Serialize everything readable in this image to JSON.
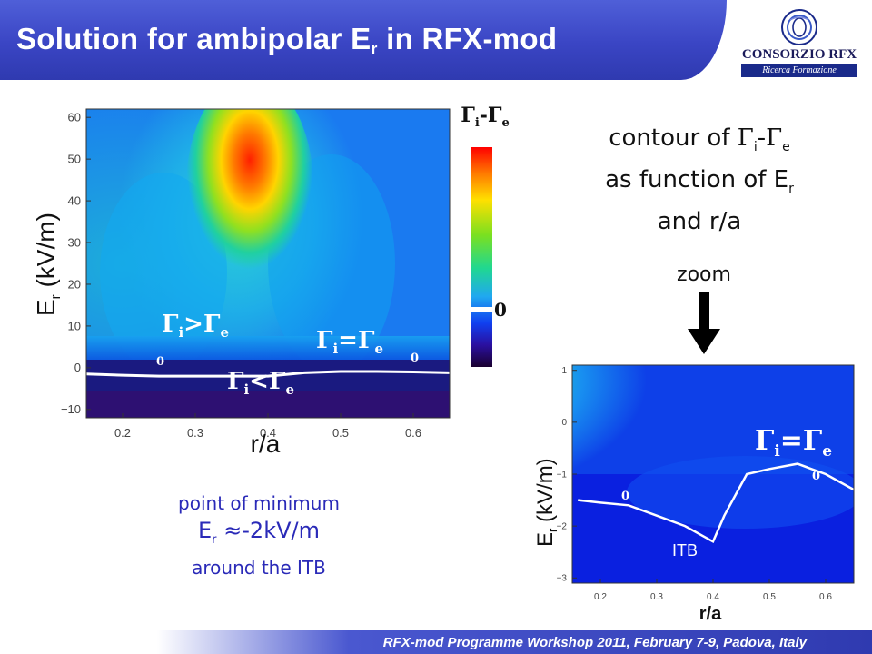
{
  "title": {
    "main": "Solution for ambipolar E",
    "sub": "r",
    "rest": " in RFX-mod"
  },
  "logo": {
    "name": "CONSORZIO RFX",
    "tagline": "Ricerca Formazione Innovazione"
  },
  "footer": "RFX-mod Programme Workshop 2011, February 7-9, Padova, Italy",
  "colorbar": {
    "title": "Γi-Γe",
    "zero_label": "0"
  },
  "description": {
    "line1a": "contour of ",
    "line1b": "Γ",
    "line1c": "i",
    "line1d": "-",
    "line1e": "Γ",
    "line1f": "e",
    "line2a": "as function of E",
    "line2b": "r",
    "line3": "and r/a"
  },
  "zoom_label": "zoom",
  "minimum_note": {
    "line1": "point of minimum",
    "line2a": "E",
    "line2b": "r",
    "line2c": " ≈-2kV/m",
    "line3": "around the ITB"
  },
  "chart_data": [
    {
      "type": "heatmap",
      "title": "",
      "xlabel": "r/a",
      "ylabel_main": "E",
      "ylabel_sub": "r",
      "ylabel_rest": " (kV/m)",
      "xlim": [
        0.15,
        0.65
      ],
      "ylim": [
        -12,
        62
      ],
      "x_ticks": [
        "0.2",
        "0.3",
        "0.4",
        "0.5",
        "0.6"
      ],
      "y_ticks": [
        "60",
        "50",
        "40",
        "30",
        "20",
        "10",
        "0",
        "−10"
      ],
      "zero_contour": {
        "label": "0",
        "r_a": [
          0.15,
          0.2,
          0.25,
          0.3,
          0.35,
          0.4,
          0.45,
          0.5,
          0.55,
          0.6,
          0.65
        ],
        "Er": [
          -1.5,
          -1.8,
          -2.0,
          -2.0,
          -2.0,
          -2.0,
          -1.2,
          -0.9,
          -0.9,
          -1.0,
          -1.2
        ]
      },
      "region_labels": {
        "above": {
          "a": "Γ",
          "b": "i",
          "c": ">",
          "d": "Γ",
          "e": "e"
        },
        "on": {
          "a": "Γ",
          "b": "i",
          "c": "=",
          "d": "Γ",
          "e": "e"
        },
        "below": {
          "a": "Γ",
          "b": "i",
          "c": "<",
          "d": "Γ",
          "e": "e"
        }
      }
    },
    {
      "type": "heatmap",
      "title": "",
      "xlabel": "r/a",
      "ylabel_main": "E",
      "ylabel_sub": "r",
      "ylabel_rest": " (kV/m)",
      "xlim": [
        0.15,
        0.65
      ],
      "ylim": [
        -3.1,
        1.1
      ],
      "x_ticks": [
        "0.2",
        "0.3",
        "0.4",
        "0.5",
        "0.6"
      ],
      "y_ticks": [
        "1",
        "0",
        "−1",
        "−2",
        "−3"
      ],
      "zero_contour": {
        "label": "0",
        "r_a": [
          0.16,
          0.2,
          0.25,
          0.3,
          0.35,
          0.4,
          0.42,
          0.46,
          0.5,
          0.55,
          0.6,
          0.65
        ],
        "Er": [
          -1.5,
          -1.55,
          -1.6,
          -1.8,
          -2.0,
          -2.3,
          -1.8,
          -1.0,
          -0.9,
          -0.8,
          -1.0,
          -1.3
        ]
      },
      "region_label": {
        "a": "Γ",
        "b": "i",
        "c": "=",
        "d": "Γ",
        "e": "e"
      },
      "itb_label": "ITB"
    }
  ]
}
